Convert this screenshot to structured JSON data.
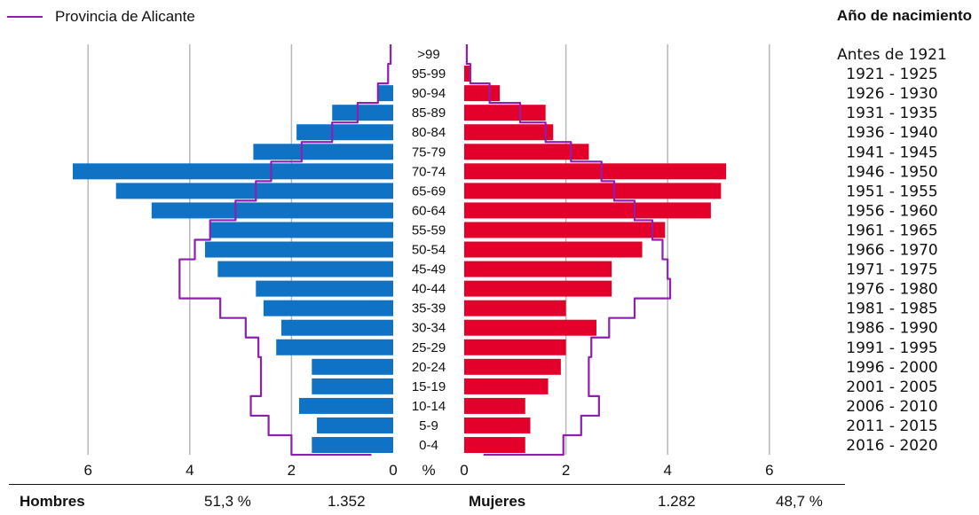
{
  "legend": {
    "label": "Provincia de Alicante",
    "color": "#8e1fb0"
  },
  "year_axis_title": "Año de nacimiento",
  "footer": {
    "men_label": "Hombres",
    "men_pct": "51,3 %",
    "men_count": "1.352",
    "women_label": "Mujeres",
    "women_count": "1.282",
    "women_pct": "48,7 %"
  },
  "colors": {
    "men": "#0f72c5",
    "women": "#e3002b",
    "outline": "#8e1fb0",
    "grid": "#b8b8b8"
  },
  "chart_data": {
    "type": "bar",
    "subtype": "population-pyramid",
    "x_unit": "%",
    "xlim": [
      0,
      7
    ],
    "x_ticks_left": [
      "6",
      "4",
      "2",
      "0"
    ],
    "x_ticks_right": [
      "0",
      "2",
      "4",
      "6"
    ],
    "age_groups": [
      ">99",
      "95-99",
      "90-94",
      "85-89",
      "80-84",
      "75-79",
      "70-74",
      "65-69",
      "60-64",
      "55-59",
      "50-54",
      "45-49",
      "40-44",
      "35-39",
      "30-34",
      "25-29",
      "20-24",
      "15-19",
      "10-14",
      "5-9",
      "0-4"
    ],
    "birth_years": [
      "Antes de 1921",
      "1921 - 1925",
      "1926 - 1930",
      "1931 - 1935",
      "1936 - 1940",
      "1941 - 1945",
      "1946 - 1950",
      "1951 - 1955",
      "1956 - 1960",
      "1961 - 1965",
      "1966 - 1970",
      "1971 - 1975",
      "1976 - 1980",
      "1981 - 1985",
      "1986 - 1990",
      "1991 - 1995",
      "1996 - 2000",
      "2001 - 2005",
      "2006 - 2010",
      "2011 - 2015",
      "2016 - 2020"
    ],
    "series": [
      {
        "name": "Hombres",
        "values": [
          0,
          0,
          0.3,
          1.2,
          1.9,
          2.75,
          6.3,
          5.45,
          4.75,
          3.6,
          3.7,
          3.45,
          2.7,
          2.55,
          2.2,
          2.3,
          1.6,
          1.6,
          1.85,
          1.5,
          1.6
        ]
      },
      {
        "name": "Mujeres",
        "values": [
          0,
          0.12,
          0.7,
          1.6,
          1.75,
          2.45,
          5.15,
          5.05,
          4.85,
          3.95,
          3.5,
          2.9,
          2.9,
          2.0,
          2.6,
          2.0,
          1.9,
          1.65,
          1.2,
          1.3,
          1.2
        ]
      },
      {
        "name": "Provincia de Alicante",
        "men": [
          0.05,
          0.1,
          0.3,
          0.7,
          1.2,
          1.8,
          2.4,
          2.7,
          3.1,
          3.6,
          3.9,
          4.2,
          4.2,
          3.4,
          2.9,
          2.65,
          2.6,
          2.6,
          2.8,
          2.45,
          2.0
        ],
        "women": [
          0.05,
          0.12,
          0.5,
          1.1,
          1.6,
          2.1,
          2.7,
          2.95,
          3.35,
          3.7,
          3.9,
          4.0,
          4.05,
          3.35,
          2.85,
          2.5,
          2.45,
          2.45,
          2.65,
          2.3,
          1.95
        ]
      }
    ]
  }
}
